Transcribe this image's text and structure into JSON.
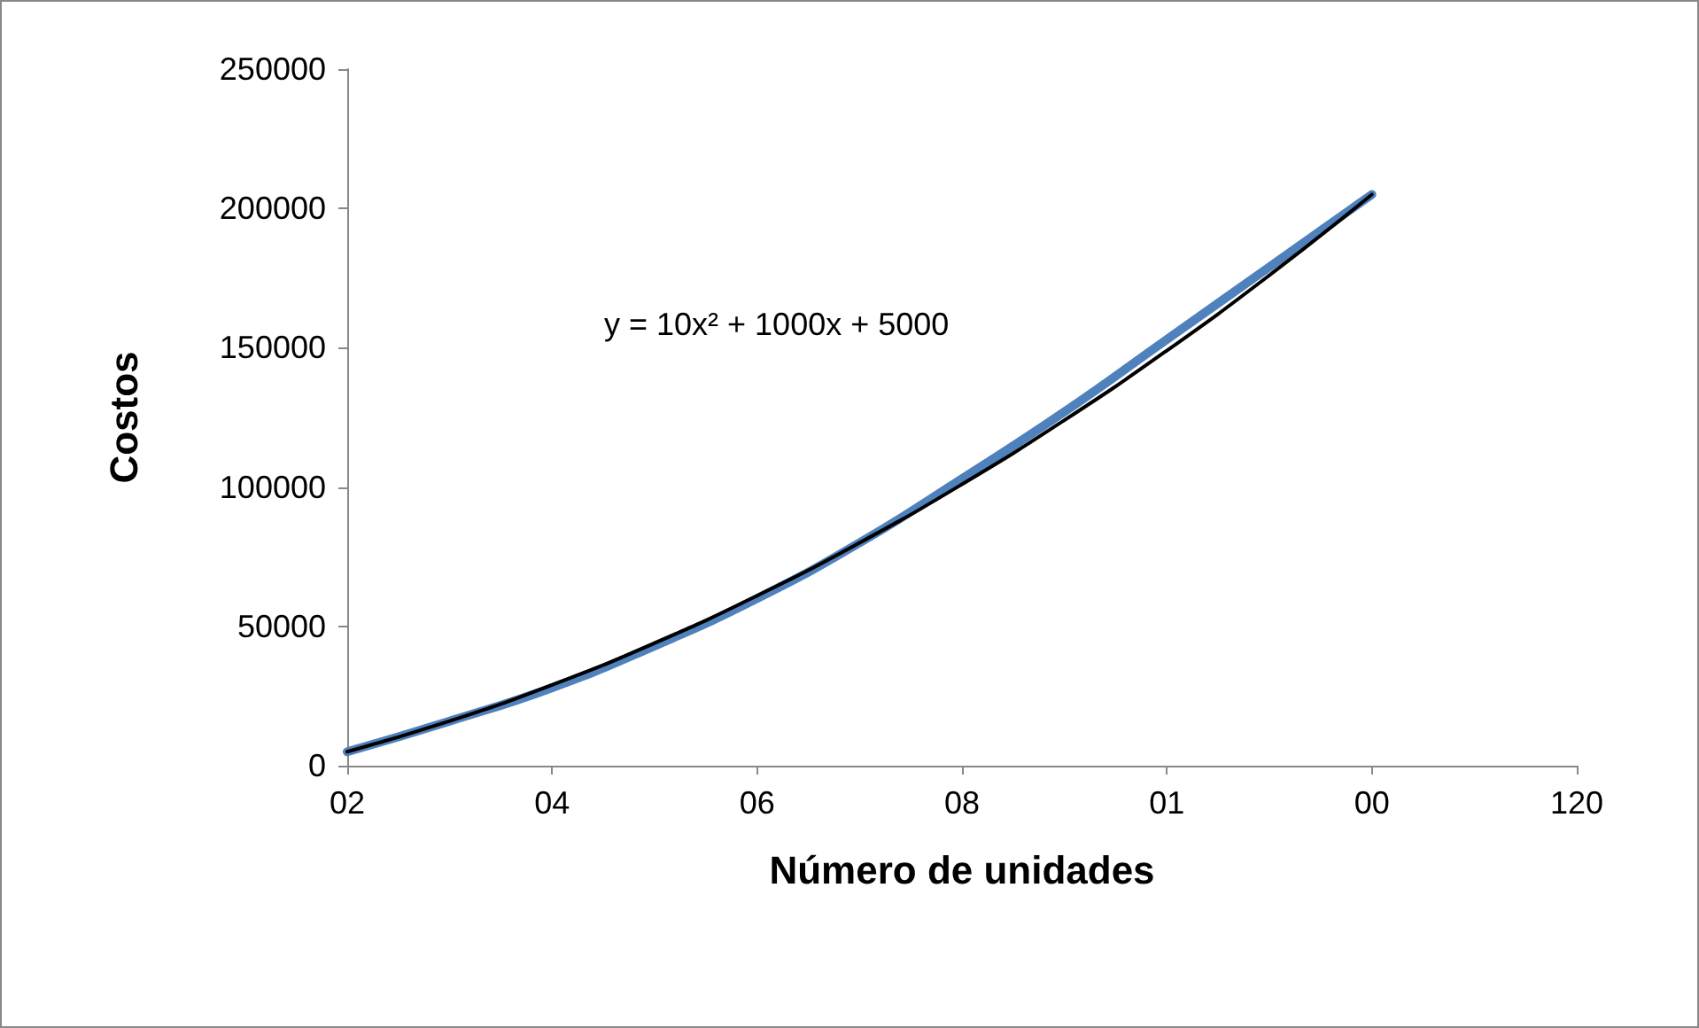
{
  "chart_data": {
    "type": "line",
    "xlabel": "Número de unidades",
    "ylabel": "Costos",
    "annotations": [
      "y = 10x² + 1000x + 5000"
    ],
    "categories": [
      "02",
      null,
      "04",
      null,
      "06",
      null,
      "08",
      null,
      "01",
      null,
      "00",
      null,
      "120"
    ],
    "ylim": [
      0,
      250000
    ],
    "yticks": [
      0,
      50000,
      100000,
      150000,
      200000,
      250000
    ],
    "grid": false,
    "marker": "none",
    "series": [
      {
        "color": "#4f81bd",
        "values": [
          5000,
          16000,
          28000,
          43000,
          60000,
          80000,
          103000,
          127000,
          153000,
          179000,
          205000,
          null,
          null
        ]
      },
      {
        "color": "#000000",
        "values": [
          5000,
          16000,
          29000,
          44000,
          61000,
          80000,
          101000,
          124000,
          149000,
          176000,
          205000,
          null,
          null
        ]
      }
    ]
  }
}
